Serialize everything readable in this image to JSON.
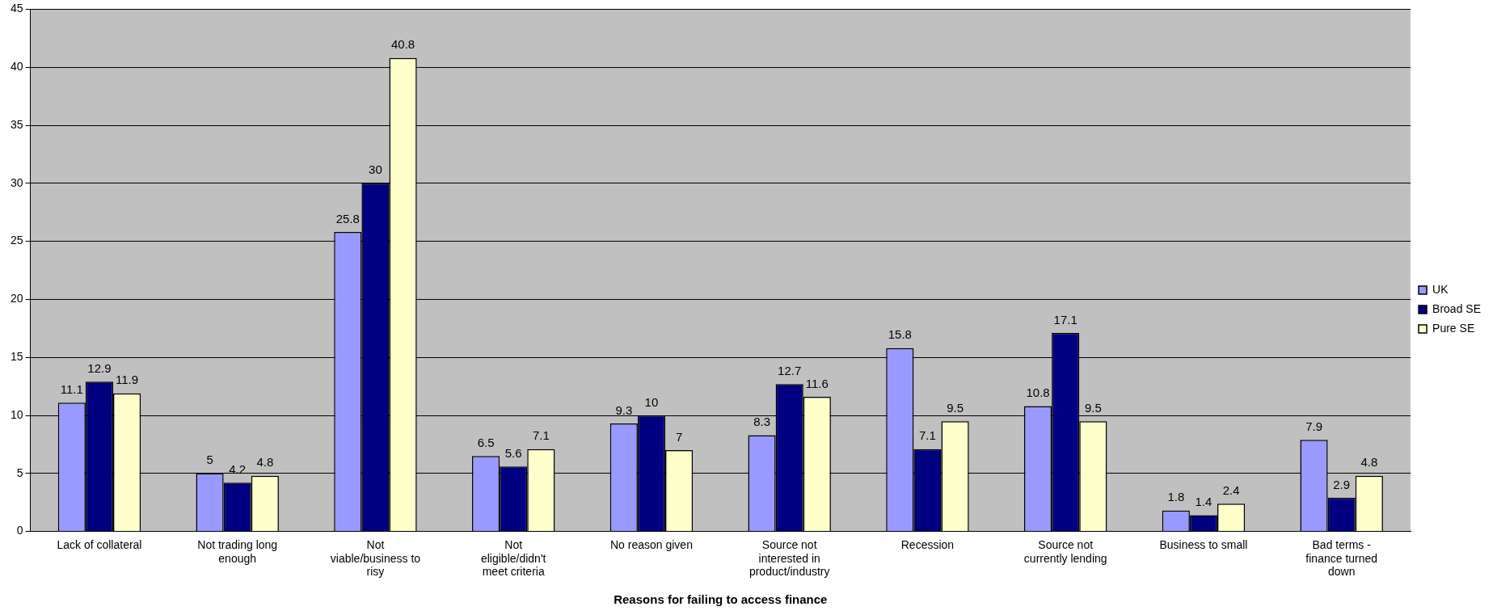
{
  "chart_data": {
    "type": "bar",
    "xlabel": "Reasons for failing to access finance",
    "categories": [
      "Lack of collateral",
      "Not trading long enough",
      "Not viable/business to risy",
      "Not eligible/didn't meet criteria",
      "No reason given",
      "Source not interested in product/industry",
      "Recession",
      "Source not currently lending",
      "Business to small",
      "Bad terms - finance turned down"
    ],
    "series": [
      {
        "name": "UK",
        "color": "#9999ff",
        "values": [
          11.1,
          5,
          25.8,
          6.5,
          9.3,
          8.3,
          15.8,
          10.8,
          1.8,
          7.9
        ]
      },
      {
        "name": "Broad SE",
        "color": "#000080",
        "values": [
          12.9,
          4.2,
          30,
          5.6,
          10,
          12.7,
          7.1,
          17.1,
          1.4,
          2.9
        ]
      },
      {
        "name": "Pure SE",
        "color": "#ffffcc",
        "values": [
          11.9,
          4.8,
          40.8,
          7.1,
          7,
          11.6,
          9.5,
          9.5,
          2.4,
          4.8
        ]
      }
    ],
    "ylim": [
      0,
      45
    ],
    "yticks": [
      0,
      5,
      10,
      15,
      20,
      25,
      30,
      35,
      40,
      45
    ],
    "grid": "y",
    "legend": "right",
    "data_labels": true
  }
}
